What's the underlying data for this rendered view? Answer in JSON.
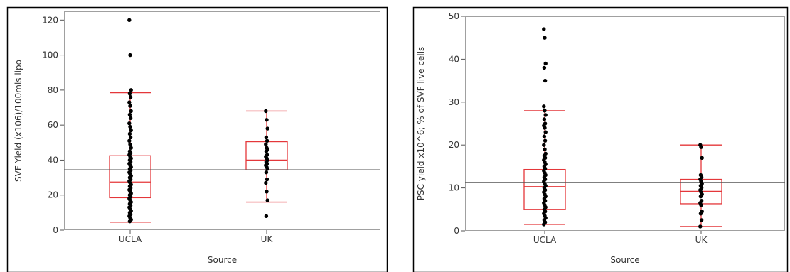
{
  "chart_data": [
    {
      "type": "box",
      "xlabel": "Source",
      "ylabel": "SVF Yield (x106)/100mls lipo",
      "ylim": [
        0,
        125
      ],
      "yticks": [
        0,
        20,
        40,
        60,
        80,
        100,
        120
      ],
      "categories": [
        "UCLA",
        "UK"
      ],
      "grand_mean": 34.5,
      "grid": false,
      "boxes": [
        {
          "category": "UCLA",
          "whisker_low": 4.5,
          "q1": 18.5,
          "median": 27.5,
          "q3": 42.5,
          "whisker_high": 78.5
        },
        {
          "category": "UK",
          "whisker_low": 16,
          "q1": 34.5,
          "median": 40,
          "q3": 50.5,
          "whisker_high": 68
        }
      ],
      "points": [
        {
          "category": "UCLA",
          "values": [
            120,
            100,
            80,
            78,
            76,
            73,
            71,
            68,
            66,
            64,
            61,
            59,
            57,
            55,
            53,
            51,
            49,
            47,
            45,
            44,
            43,
            42,
            41,
            40,
            39,
            38,
            37,
            36,
            35,
            34,
            33,
            32,
            31,
            30,
            29,
            28,
            27,
            26,
            25,
            24,
            23,
            22,
            21,
            20,
            19,
            18,
            17,
            16,
            15,
            14,
            13,
            12,
            11,
            10,
            9,
            8,
            7,
            6,
            5
          ]
        },
        {
          "category": "UK",
          "values": [
            68,
            63,
            58,
            53,
            51,
            49,
            47,
            46,
            45,
            43,
            42,
            41,
            40,
            39,
            38,
            37,
            36,
            35,
            33,
            29,
            27,
            22,
            17,
            8
          ]
        }
      ]
    },
    {
      "type": "box",
      "xlabel": "Source",
      "ylabel": "PSC yield x10^6; % of SVF live cells",
      "ylim": [
        0,
        50
      ],
      "yticks": [
        0,
        10,
        20,
        30,
        40,
        50
      ],
      "categories": [
        "UCLA",
        "UK"
      ],
      "grand_mean": 11.3,
      "grid": false,
      "boxes": [
        {
          "category": "UCLA",
          "whisker_low": 1.5,
          "q1": 5,
          "median": 10.3,
          "q3": 14.3,
          "whisker_high": 28
        },
        {
          "category": "UK",
          "whisker_low": 1,
          "q1": 6.3,
          "median": 9.2,
          "q3": 12,
          "whisker_high": 20
        }
      ],
      "points": [
        {
          "category": "UCLA",
          "values": [
            47,
            45,
            39,
            38,
            35,
            29,
            28,
            27,
            26,
            25,
            24.5,
            24,
            23,
            22,
            21,
            20,
            19,
            18,
            17.5,
            17,
            16.5,
            16,
            15.5,
            15,
            14.5,
            14,
            13.5,
            13,
            12.5,
            12,
            11.5,
            11,
            10.5,
            10,
            9.5,
            9,
            8.5,
            8,
            7.5,
            7,
            6.5,
            6,
            5.5,
            5,
            4.5,
            4,
            3.5,
            3,
            2.5,
            2,
            1.5
          ]
        },
        {
          "category": "UK",
          "values": [
            20,
            19.5,
            17,
            13,
            12.5,
            12,
            11.5,
            11,
            10.5,
            10,
            9.5,
            9,
            8.5,
            8,
            7,
            6.5,
            6,
            4.5,
            4,
            2.5,
            1
          ]
        }
      ]
    }
  ]
}
